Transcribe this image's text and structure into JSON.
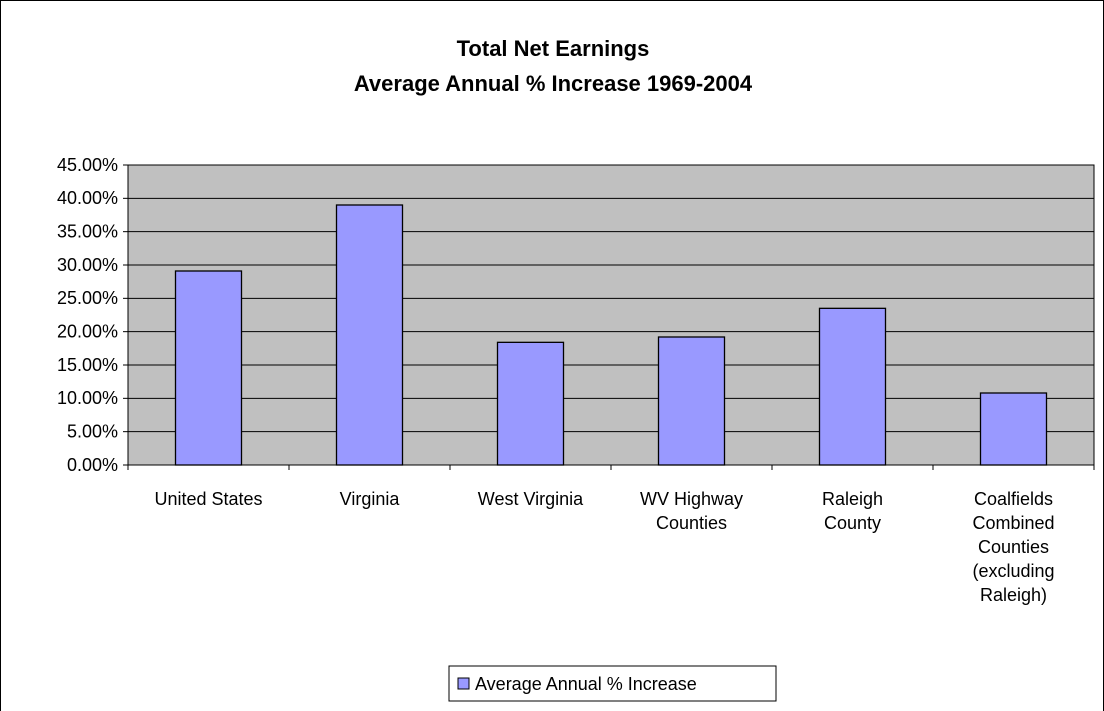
{
  "chart_data": {
    "type": "bar",
    "title": "Total Net Earnings\nAverage Annual % Increase 1969-2004",
    "categories": [
      "United States",
      "Virginia",
      "West Virginia",
      "WV Highway\nCounties",
      "Raleigh\nCounty",
      "Coalfields\nCombined\nCounties\n(excluding\nRaleigh)"
    ],
    "series": [
      {
        "name": "Average Annual % Increase",
        "color": "#9999ff",
        "values": [
          29.1,
          39.0,
          18.4,
          19.2,
          23.5,
          10.8
        ]
      }
    ],
    "ylim": [
      0,
      45
    ],
    "yticks": [
      {
        "value": 0,
        "label": "0.00%"
      },
      {
        "value": 5,
        "label": "5.00%"
      },
      {
        "value": 10,
        "label": "10.00%"
      },
      {
        "value": 15,
        "label": "15.00%"
      },
      {
        "value": 20,
        "label": "20.00%"
      },
      {
        "value": 25,
        "label": "25.00%"
      },
      {
        "value": 30,
        "label": "30.00%"
      },
      {
        "value": 35,
        "label": "35.00%"
      },
      {
        "value": 40,
        "label": "40.00%"
      },
      {
        "value": 45,
        "label": "45.00%"
      }
    ],
    "grid": true,
    "plot_background": "#c0c0c0",
    "legend": "bottom"
  }
}
